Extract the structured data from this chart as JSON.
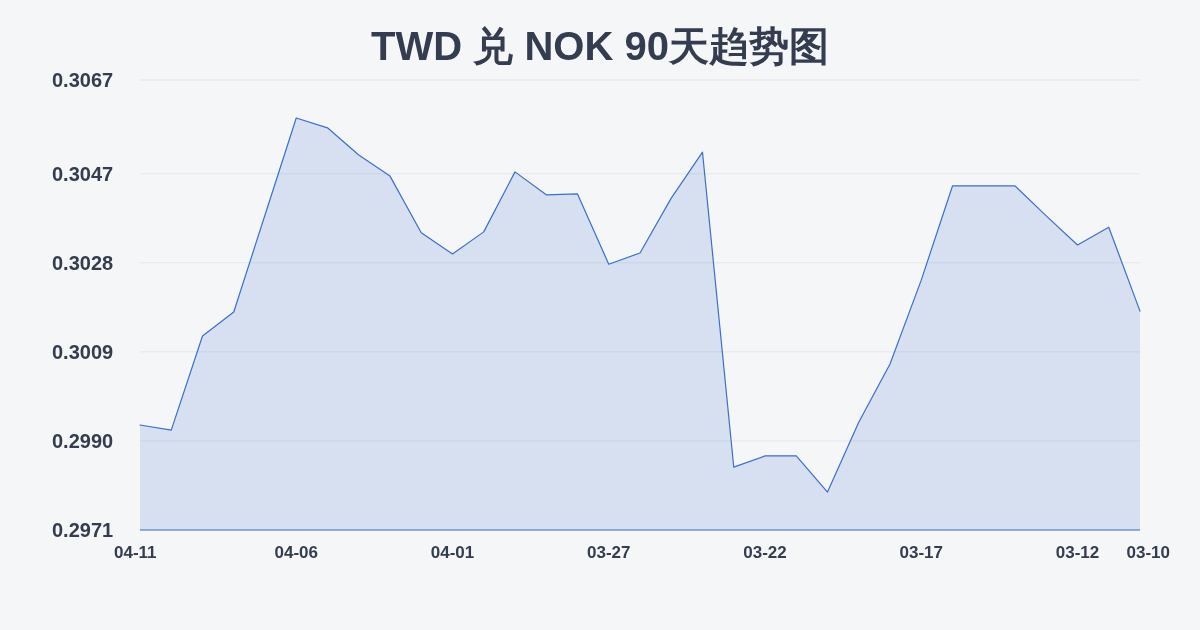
{
  "chart_data": {
    "type": "area",
    "title": "TWD 兑 NOK 90天趋势图",
    "categories": [
      "04-11",
      null,
      null,
      null,
      null,
      "04-06",
      null,
      null,
      null,
      null,
      "04-01",
      null,
      null,
      null,
      null,
      "03-27",
      null,
      null,
      null,
      null,
      "03-22",
      null,
      null,
      null,
      null,
      "03-17",
      null,
      null,
      null,
      null,
      "03-12",
      null,
      "03-10"
    ],
    "series": [
      {
        "color": "#3a6fd0",
        "values": [
          0.29934,
          0.29923,
          0.30124,
          0.30175,
          0.30382,
          0.30589,
          0.30568,
          0.3051,
          0.30465,
          0.30344,
          0.30299,
          0.30346,
          0.30474,
          0.30425,
          0.30427,
          0.30277,
          0.30301,
          0.30418,
          0.30516,
          0.29844,
          0.29868,
          0.29868,
          0.29791,
          0.2994,
          0.30064,
          0.30243,
          0.30444,
          0.30444,
          0.30444,
          0.3038,
          0.30318,
          0.30356,
          0.30177
        ]
      }
    ],
    "ylim": [
      0.2971,
      0.3067
    ],
    "yticks": [
      0.2971,
      {
        "value": 0.299,
        "label": "0.2990"
      },
      0.3009,
      0.3028,
      0.3047,
      0.3067
    ],
    "grid": "y"
  }
}
